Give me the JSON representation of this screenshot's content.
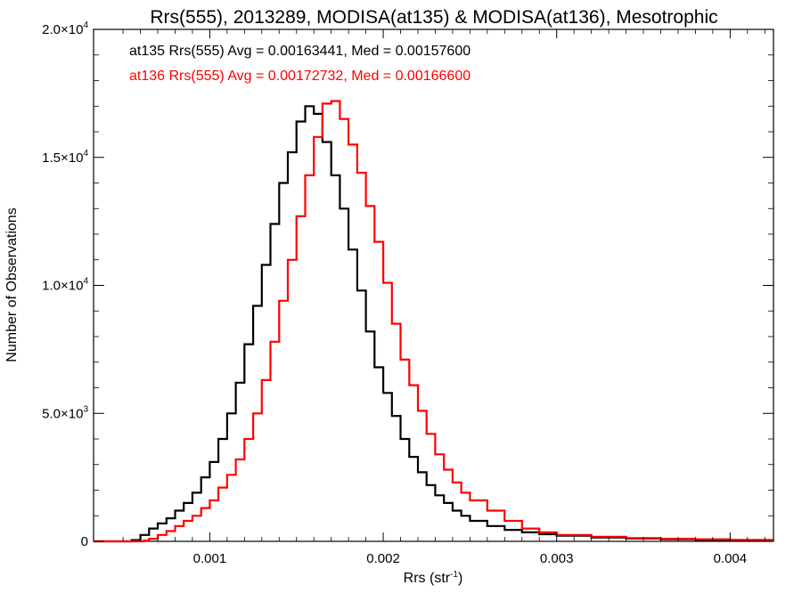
{
  "chart_data": {
    "type": "line",
    "title": "Rrs(555), 2013289, MODISA(at135) & MODISA(at136), Mesotrophic",
    "xlabel": "Rrs (str",
    "xlabel_sup": "-1",
    "xlabel_end": ")",
    "ylabel": "Number of Observations",
    "xlim": [
      0.00033,
      0.00425
    ],
    "ylim": [
      0,
      20000
    ],
    "x_ticks": [
      {
        "value": 0.001,
        "label": "0.001"
      },
      {
        "value": 0.002,
        "label": "0.002"
      },
      {
        "value": 0.003,
        "label": "0.003"
      },
      {
        "value": 0.004,
        "label": "0.004"
      }
    ],
    "y_ticks": [
      {
        "value": 0,
        "label": "0",
        "sup": ""
      },
      {
        "value": 5000,
        "label": "5.0×10",
        "sup": "3"
      },
      {
        "value": 10000,
        "label": "1.0×10",
        "sup": "4"
      },
      {
        "value": 15000,
        "label": "1.5×10",
        "sup": "4"
      },
      {
        "value": 20000,
        "label": "2.0×10",
        "sup": "4"
      }
    ],
    "legend": {
      "placement": "top-left",
      "entries": [
        {
          "text": "at135 Rrs(555) Avg = 0.00163441, Med = 0.00157600",
          "color": "#000000"
        },
        {
          "text": "at136 Rrs(555) Avg = 0.00172732, Med = 0.00166600",
          "color": "#ff0000"
        }
      ]
    },
    "series": [
      {
        "color": "#000000",
        "points": [
          [
            0.00033,
            0
          ],
          [
            0.0005,
            0
          ],
          [
            0.00055,
            50
          ],
          [
            0.0006,
            250
          ],
          [
            0.00065,
            500
          ],
          [
            0.0007,
            700
          ],
          [
            0.00075,
            900
          ],
          [
            0.0008,
            1200
          ],
          [
            0.00085,
            1500
          ],
          [
            0.0009,
            1900
          ],
          [
            0.00095,
            2500
          ],
          [
            0.001,
            3100
          ],
          [
            0.00105,
            4000
          ],
          [
            0.0011,
            5000
          ],
          [
            0.00115,
            6200
          ],
          [
            0.0012,
            7700
          ],
          [
            0.00125,
            9200
          ],
          [
            0.0013,
            10800
          ],
          [
            0.00135,
            12400
          ],
          [
            0.0014,
            14000
          ],
          [
            0.00145,
            15200
          ],
          [
            0.0015,
            16400
          ],
          [
            0.00155,
            17000
          ],
          [
            0.0016,
            16700
          ],
          [
            0.00165,
            15600
          ],
          [
            0.0017,
            14300
          ],
          [
            0.00175,
            13000
          ],
          [
            0.0018,
            11400
          ],
          [
            0.00185,
            9800
          ],
          [
            0.0019,
            8200
          ],
          [
            0.00195,
            6800
          ],
          [
            0.002,
            5800
          ],
          [
            0.00205,
            4900
          ],
          [
            0.0021,
            4000
          ],
          [
            0.00215,
            3300
          ],
          [
            0.0022,
            2700
          ],
          [
            0.00225,
            2200
          ],
          [
            0.0023,
            1800
          ],
          [
            0.00235,
            1500
          ],
          [
            0.0024,
            1200
          ],
          [
            0.00245,
            1000
          ],
          [
            0.0025,
            800
          ],
          [
            0.0026,
            600
          ],
          [
            0.0027,
            450
          ],
          [
            0.0028,
            350
          ],
          [
            0.0029,
            280
          ],
          [
            0.003,
            220
          ],
          [
            0.0032,
            150
          ],
          [
            0.0034,
            110
          ],
          [
            0.0036,
            80
          ],
          [
            0.0038,
            60
          ],
          [
            0.004,
            50
          ],
          [
            0.00425,
            40
          ]
        ]
      },
      {
        "color": "#ff0000",
        "points": [
          [
            0.00033,
            0
          ],
          [
            0.00058,
            0
          ],
          [
            0.00062,
            30
          ],
          [
            0.00065,
            100
          ],
          [
            0.0007,
            250
          ],
          [
            0.00075,
            400
          ],
          [
            0.0008,
            600
          ],
          [
            0.00085,
            800
          ],
          [
            0.0009,
            1000
          ],
          [
            0.00095,
            1300
          ],
          [
            0.001,
            1600
          ],
          [
            0.00105,
            2100
          ],
          [
            0.0011,
            2600
          ],
          [
            0.00115,
            3200
          ],
          [
            0.0012,
            4000
          ],
          [
            0.00125,
            5000
          ],
          [
            0.0013,
            6300
          ],
          [
            0.00135,
            7800
          ],
          [
            0.0014,
            9400
          ],
          [
            0.00145,
            11000
          ],
          [
            0.0015,
            12700
          ],
          [
            0.00155,
            14300
          ],
          [
            0.0016,
            15800
          ],
          [
            0.00165,
            17100
          ],
          [
            0.0017,
            17200
          ],
          [
            0.00175,
            16500
          ],
          [
            0.0018,
            15500
          ],
          [
            0.00185,
            14400
          ],
          [
            0.0019,
            13100
          ],
          [
            0.00195,
            11700
          ],
          [
            0.002,
            10100
          ],
          [
            0.00205,
            8500
          ],
          [
            0.0021,
            7100
          ],
          [
            0.00215,
            6100
          ],
          [
            0.0022,
            5100
          ],
          [
            0.00225,
            4200
          ],
          [
            0.0023,
            3400
          ],
          [
            0.00235,
            2800
          ],
          [
            0.0024,
            2300
          ],
          [
            0.00245,
            1900
          ],
          [
            0.0025,
            1600
          ],
          [
            0.0026,
            1200
          ],
          [
            0.0027,
            800
          ],
          [
            0.0028,
            500
          ],
          [
            0.0029,
            350
          ],
          [
            0.003,
            250
          ],
          [
            0.0032,
            180
          ],
          [
            0.0034,
            130
          ],
          [
            0.0036,
            100
          ],
          [
            0.0038,
            80
          ],
          [
            0.004,
            60
          ],
          [
            0.00425,
            50
          ]
        ]
      }
    ]
  }
}
